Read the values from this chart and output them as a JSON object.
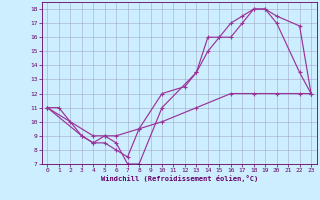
{
  "xlabel": "Windchill (Refroidissement éolien,°C)",
  "bg_color": "#cceeff",
  "grid_color": "#9999bb",
  "line_color": "#993399",
  "ylim": [
    7,
    18.5
  ],
  "xlim": [
    -0.5,
    23.5
  ],
  "yticks": [
    7,
    8,
    9,
    10,
    11,
    12,
    13,
    14,
    15,
    16,
    17,
    18
  ],
  "xticks": [
    0,
    1,
    2,
    3,
    4,
    5,
    6,
    7,
    8,
    9,
    10,
    11,
    12,
    13,
    14,
    15,
    16,
    17,
    18,
    19,
    20,
    21,
    22,
    23
  ],
  "line1_x": [
    0,
    1,
    3,
    4,
    5,
    6,
    7,
    8,
    10,
    12,
    13,
    14,
    15,
    16,
    17,
    18,
    19,
    20,
    22,
    23
  ],
  "line1_y": [
    11,
    11,
    9,
    8.5,
    8.5,
    8,
    7.5,
    9.5,
    12,
    12.5,
    13.5,
    15,
    16,
    16,
    17,
    18,
    18,
    17,
    13.5,
    12
  ],
  "line2_x": [
    0,
    3,
    4,
    5,
    6,
    7,
    8,
    10,
    13,
    14,
    15,
    16,
    17,
    18,
    19,
    20,
    22,
    23
  ],
  "line2_y": [
    11,
    9,
    8.5,
    9,
    8.5,
    7,
    7,
    11,
    13.5,
    16,
    16,
    17,
    17.5,
    18,
    18,
    17.5,
    16.8,
    12
  ],
  "line3_x": [
    0,
    2,
    4,
    5,
    6,
    8,
    10,
    13,
    16,
    18,
    20,
    22,
    23
  ],
  "line3_y": [
    11,
    10,
    9,
    9,
    9,
    9.5,
    10,
    11,
    12,
    12,
    12,
    12,
    12
  ]
}
